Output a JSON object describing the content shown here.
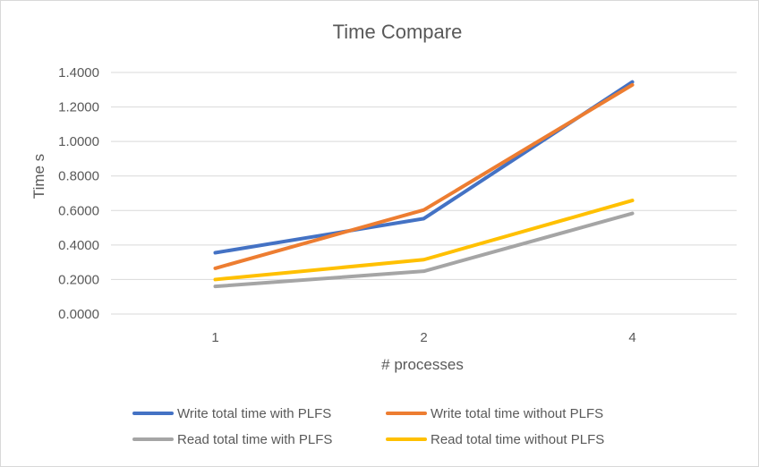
{
  "chart_data": {
    "type": "line",
    "title": "Time Compare",
    "xlabel": "# processes",
    "ylabel": "Time s",
    "categories": [
      "1",
      "2",
      "4"
    ],
    "ylim": [
      0,
      1.4
    ],
    "yticks": [
      "0.0000",
      "0.2000",
      "0.4000",
      "0.6000",
      "0.8000",
      "1.0000",
      "1.2000",
      "1.4000"
    ],
    "grid": true,
    "legend_position": "bottom",
    "series": [
      {
        "name": "Write total time with PLFS",
        "color": "#4472C4",
        "values": [
          0.355,
          0.553,
          1.345
        ]
      },
      {
        "name": "Write total time without PLFS",
        "color": "#ED7D31",
        "values": [
          0.265,
          0.603,
          1.328
        ]
      },
      {
        "name": "Read total time with PLFS",
        "color": "#A5A5A5",
        "values": [
          0.16,
          0.248,
          0.583
        ]
      },
      {
        "name": "Read total time without PLFS",
        "color": "#FFC000",
        "values": [
          0.2,
          0.315,
          0.658
        ]
      }
    ]
  }
}
